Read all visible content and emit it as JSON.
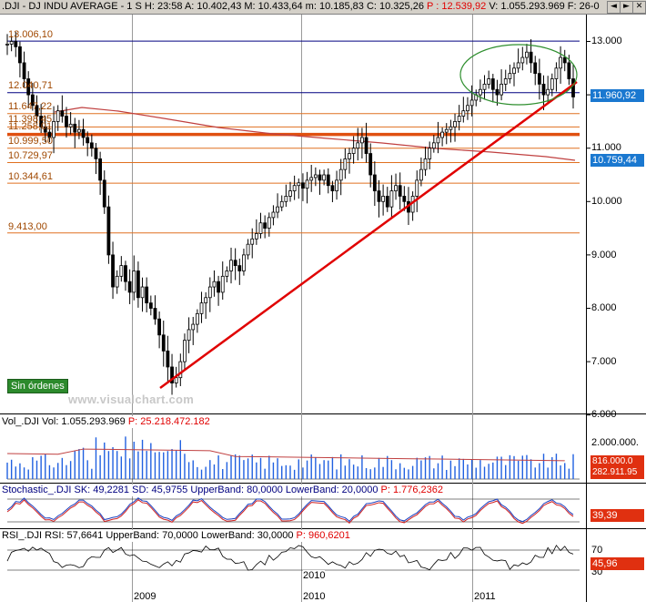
{
  "header": {
    "symbol": ".DJI - DJ INDU AVERAGE - 1 S",
    "hour": "H: 23:58",
    "open": "A: 10.402,43",
    "high": "M: 10.433,64",
    "low": "m: 10.185,83",
    "close": "C: 10.325,26",
    "p": "P : 12.539,92",
    "volume": "V: 1.055.293.969",
    "date": "F: 26-0",
    "buttons": [
      "◄",
      "►",
      "✕"
    ]
  },
  "badge": "Sin órdenes",
  "watermark": "www.visualchart.com",
  "colors": {
    "price_series": "#000000",
    "trendline": "#e00000",
    "moving_average": "#c04040",
    "level_lines": "#e07020",
    "thick_level": "#e05010",
    "blue_lines": "#000080",
    "ellipse": "#2f8f2f",
    "volume_bars": "#2060e0",
    "tag_blue": "#1a78d0",
    "tag_red": "#e03010"
  },
  "chart_data": [
    {
      "type": "bar",
      "title": "DJ INDU AVERAGE (weekly OHLC)",
      "ylim": [
        6000,
        13400
      ],
      "ticks_y": [
        "13.000",
        "12.000",
        "11.000",
        "10.000",
        "9.000",
        "8.000",
        "7.000",
        "6.000"
      ],
      "tick_values_y": [
        13000,
        12000,
        11000,
        10000,
        9000,
        8000,
        7000,
        6000
      ],
      "x_labels": [
        "2009",
        "2010",
        "2011"
      ],
      "levels": [
        {
          "label": "13.006,10",
          "value": 13006.1,
          "color": "blue"
        },
        {
          "label": "12.040,71",
          "value": 12040.71,
          "color": "blue"
        },
        {
          "label": "11.647,22",
          "value": 11647.22,
          "color": "orange"
        },
        {
          "label": "11.398,45",
          "value": 11398.45,
          "color": "orange"
        },
        {
          "label": "11.258,01",
          "value": 11258.01,
          "color": "orange-thick"
        },
        {
          "label": "10.999,50",
          "value": 10999.5,
          "color": "orange"
        },
        {
          "label": "10.729,97",
          "value": 10729.97,
          "color": "orange"
        },
        {
          "label": "10.344,61",
          "value": 10344.61,
          "color": "orange"
        },
        {
          "label": "9.413,00",
          "value": 9413.0,
          "color": "orange"
        }
      ],
      "last_value_tags": [
        "11.960,92",
        "10.759,44"
      ],
      "series_close": [
        12950,
        13000,
        12900,
        12600,
        12300,
        12000,
        11800,
        11600,
        11400,
        11300,
        11200,
        11500,
        11700,
        11600,
        11400,
        11450,
        11300,
        11350,
        11200,
        11100,
        11000,
        10800,
        10400,
        9900,
        9000,
        8400,
        8600,
        8800,
        8500,
        8300,
        8700,
        8200,
        8400,
        8100,
        8000,
        7800,
        7500,
        7200,
        6900,
        6600,
        6700,
        7000,
        7400,
        7600,
        7700,
        7900,
        8100,
        8200,
        8400,
        8500,
        8300,
        8600,
        8700,
        8900,
        8800,
        8700,
        9000,
        9200,
        9300,
        9400,
        9600,
        9500,
        9700,
        9800,
        9900,
        10000,
        10100,
        10200,
        10300,
        10350,
        10250,
        10400,
        10450,
        10500,
        10400,
        10500,
        10300,
        10200,
        10400,
        10600,
        10800,
        10900,
        11000,
        11100,
        11200,
        10900,
        10500,
        10200,
        10000,
        10100,
        9900,
        10200,
        10300,
        10100,
        10000,
        9800,
        10100,
        10400,
        10600,
        10800,
        11000,
        11100,
        11200,
        11300,
        11350,
        11400,
        11500,
        11600,
        11700,
        11800,
        11900,
        12000,
        12100,
        12200,
        12300,
        12100,
        12000,
        12200,
        12300,
        12400,
        12500,
        12600,
        12700,
        12800,
        12600,
        12400,
        12200,
        12000,
        12100,
        12300,
        12500,
        12700,
        12600,
        12300,
        11960
      ]
    },
    {
      "type": "bar",
      "title": "Vol_.DJI",
      "series_name": "Vol",
      "header_values": [
        "Vol: 1.055.293.969",
        "P: 25.218.472.182"
      ],
      "ticks_y": [
        "2.000.000."
      ],
      "last_value_tags": [
        "816.000.0",
        "282.911.95"
      ]
    },
    {
      "type": "line",
      "title": "Stochastic_.DJI",
      "header_values": [
        "SK: 49,2281",
        "SD: 45,9755",
        "UpperBand: 80,0000",
        "LowerBand: 20,0000",
        "P: 1.776,2362"
      ],
      "bands": [
        80,
        20
      ],
      "last_value_tags": [
        "39,39"
      ]
    },
    {
      "type": "line",
      "title": "RSI_.DJI",
      "header_values": [
        "RSI: 57,6641",
        "UpperBand: 70,0000",
        "LowerBand: 30,0000",
        "P: 960,6201"
      ],
      "bands": [
        70,
        30
      ],
      "ticks_y": [
        "70",
        "30"
      ],
      "last_value_tags": [
        "45,96"
      ]
    }
  ]
}
